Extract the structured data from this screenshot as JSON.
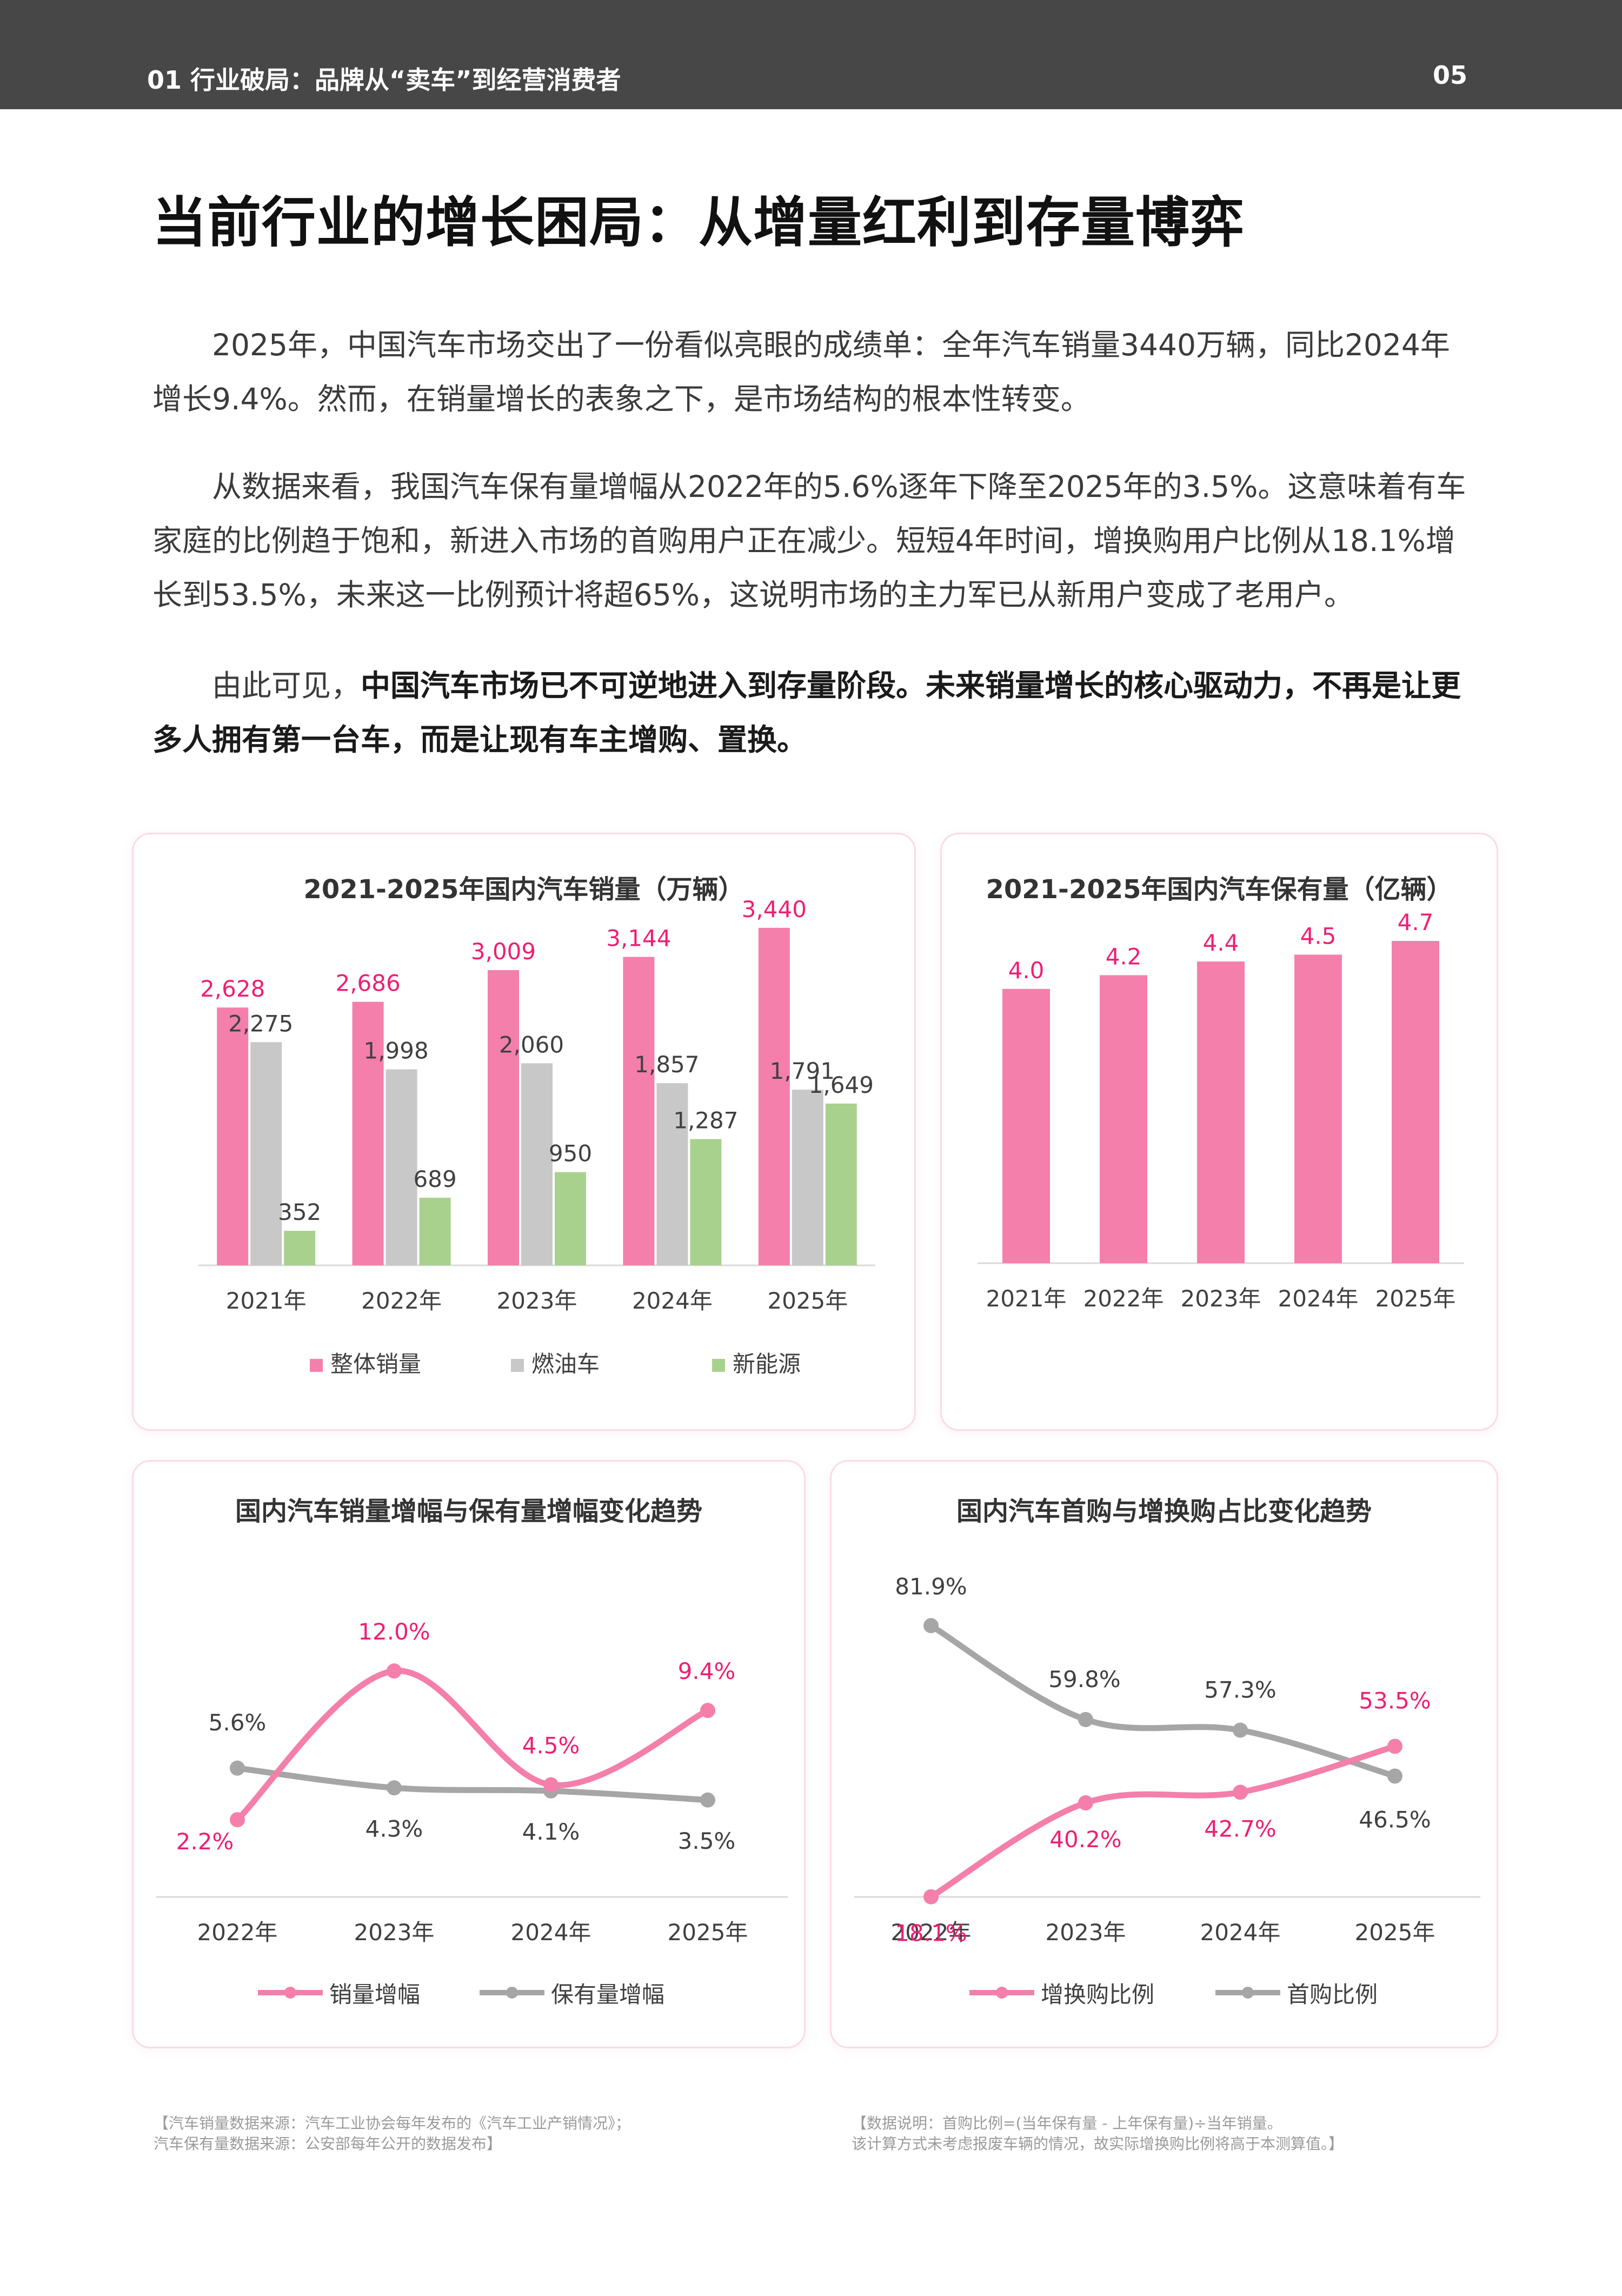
{
  "header": {
    "section": "01 行业破局：品牌从“卖车”到经营消费者",
    "page_number": "05"
  },
  "title": "当前行业的增长困局：从增量红利到存量博弈",
  "paragraphs": [
    {
      "text": "2025年，中国汽车市场交出了一份看似亮眼的成绩单：全年汽车销量3440万辆，同比2024年增长9.4%。然而，在销量增长的表象之下，是市场结构的根本性转变。"
    },
    {
      "text": "从数据来看，我国汽车保有量增幅从2022年的5.6%逐年下降至2025年的3.5%。这意味着有车家庭的比例趋于饱和，新进入市场的首购用户正在减少。短短4年时间，增换购用户比例从18.1%增长到53.5%，未来这一比例预计将超65%，这说明市场的主力军已从新用户变成了老用户。"
    },
    {
      "prefix": "由此可见，",
      "bold": "中国汽车市场已不可逆地进入到存量阶段。未来销量增长的核心驱动力，不再是让更多人拥有第一台车，而是让现有车主增购、置换。"
    }
  ],
  "colors": {
    "pink": "#f47fab",
    "pink_text": "#ee1f74",
    "gray": "#c8c8c8",
    "gray_line": "#a6a6a6",
    "green": "#a9d18e",
    "axis": "#d9d9d9"
  },
  "chart_data": [
    {
      "type": "bar",
      "title": "2021-2025年国内汽车销量（万辆）",
      "categories": [
        "2021年",
        "2022年",
        "2023年",
        "2024年",
        "2025年"
      ],
      "series": [
        {
          "name": "整体销量",
          "values": [
            2628,
            2686,
            3009,
            3144,
            3440
          ],
          "labels": [
            "2,628",
            "2,686",
            "3,009",
            "3,144",
            "3,440"
          ],
          "color": "#f47fab",
          "label_color": "#ee1f74"
        },
        {
          "name": "燃油车",
          "values": [
            2275,
            1998,
            2060,
            1857,
            1791
          ],
          "labels": [
            "2,275",
            "1,998",
            "2,060",
            "1,857",
            "1,791"
          ],
          "color": "#c8c8c8",
          "label_color": "#404040"
        },
        {
          "name": "新能源",
          "values": [
            352,
            689,
            950,
            1287,
            1649
          ],
          "labels": [
            "352",
            "689",
            "950",
            "1,287",
            "1,649"
          ],
          "color": "#a9d18e",
          "label_color": "#404040"
        }
      ],
      "ylim": [
        0,
        3500
      ],
      "legend": "bottom"
    },
    {
      "type": "bar",
      "title": "2021-2025年国内汽车保有量（亿辆）",
      "categories": [
        "2021年",
        "2022年",
        "2023年",
        "2024年",
        "2025年"
      ],
      "series": [
        {
          "values": [
            4.0,
            4.2,
            4.4,
            4.5,
            4.7
          ],
          "labels": [
            "4.0",
            "4.2",
            "4.4",
            "4.5",
            "4.7"
          ],
          "color": "#f47fab",
          "label_color": "#ee1f74"
        }
      ],
      "ylim": [
        0,
        5.0
      ]
    },
    {
      "type": "line",
      "title": "国内汽车销量增幅与保有量增幅变化趋势",
      "categories": [
        "2022年",
        "2023年",
        "2024年",
        "2025年"
      ],
      "series": [
        {
          "name": "销量增幅",
          "values": [
            2.2,
            12.0,
            4.5,
            9.4
          ],
          "labels": [
            "2.2%",
            "12.0%",
            "4.5%",
            "9.4%"
          ],
          "color": "#f47fab",
          "label_color": "#ee1f74"
        },
        {
          "name": "保有量增幅",
          "values": [
            5.6,
            4.3,
            4.1,
            3.5
          ],
          "labels": [
            "5.6%",
            "4.3%",
            "4.1%",
            "3.5%"
          ],
          "color": "#a6a6a6",
          "label_color": "#404040"
        }
      ],
      "ylim": [
        0,
        14
      ],
      "legend": "bottom"
    },
    {
      "type": "line",
      "title": "国内汽车首购与增换购占比变化趋势",
      "categories": [
        "2022年",
        "2023年",
        "2024年",
        "2025年"
      ],
      "series": [
        {
          "name": "增换购比例",
          "values": [
            18.1,
            40.2,
            42.7,
            53.5
          ],
          "labels": [
            "18.1%",
            "40.2%",
            "42.7%",
            "53.5%"
          ],
          "color": "#f47fab",
          "label_color": "#ee1f74"
        },
        {
          "name": "首购比例",
          "values": [
            81.9,
            59.8,
            57.3,
            46.5
          ],
          "labels": [
            "81.9%",
            "59.8%",
            "57.3%",
            "46.5%"
          ],
          "color": "#a6a6a6",
          "label_color": "#404040"
        }
      ],
      "ylim": [
        0,
        100
      ],
      "legend": "bottom"
    }
  ],
  "footnotes": {
    "left": [
      "【汽车销量数据来源：汽车工业协会每年发布的《汽车工业产销情况》；",
      "汽车保有量数据来源：公安部每年公开的数据发布】"
    ],
    "right": [
      "【数据说明：首购比例=(当年保有量 - 上年保有量)÷当年销量。",
      "该计算方式未考虑报废车辆的情况，故实际增换购比例将高于本测算值。】"
    ]
  }
}
